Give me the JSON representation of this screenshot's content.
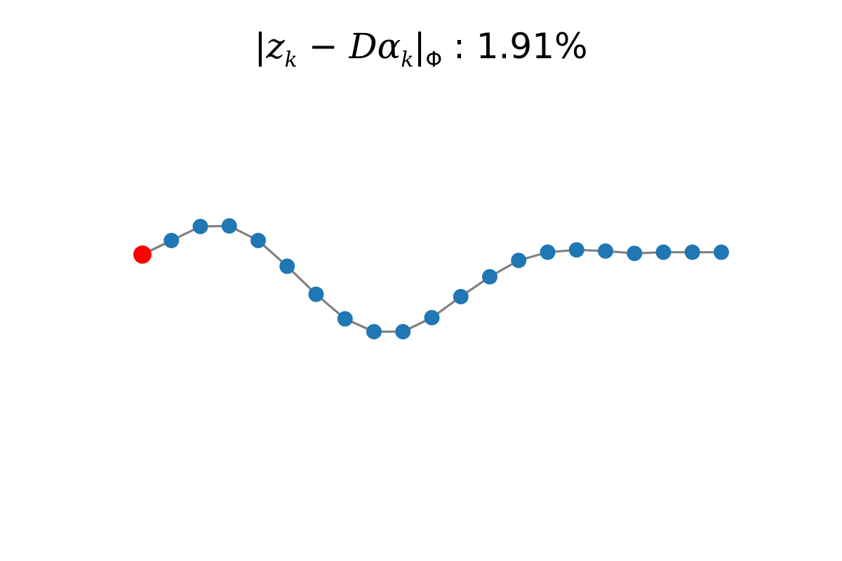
{
  "chart_data": {
    "type": "scatter",
    "title": {
      "bar_left": "|",
      "z": "z",
      "k1": "k",
      "minus": " − ",
      "D": "D",
      "alpha": "α",
      "k2": "k",
      "bar_right": "|",
      "phi": "Φ",
      "colon_value": " : 1.91%"
    },
    "axis_visible": false,
    "grid": false,
    "xlim": [
      0,
      20
    ],
    "ylim": [
      -1.2,
      1.2
    ],
    "series": [
      {
        "type": "line",
        "color": "#808080",
        "x": [
          0,
          1,
          2,
          3,
          4,
          5,
          6,
          7,
          8,
          9,
          10,
          11,
          12,
          13,
          14,
          15,
          16,
          17,
          18,
          19,
          20
        ],
        "y": [
          0.0,
          0.12,
          0.24,
          0.245,
          0.12,
          -0.1,
          -0.34,
          -0.55,
          -0.66,
          -0.66,
          -0.54,
          -0.36,
          -0.19,
          -0.05,
          0.02,
          0.04,
          0.03,
          0.01,
          0.02,
          0.02,
          0.02
        ]
      },
      {
        "type": "scatter",
        "color": "#1f77b4",
        "x": [
          1,
          2,
          3,
          4,
          5,
          6,
          7,
          8,
          9,
          10,
          11,
          12,
          13,
          14,
          15,
          16,
          17,
          18,
          19,
          20
        ],
        "y": [
          0.12,
          0.24,
          0.245,
          0.12,
          -0.1,
          -0.34,
          -0.55,
          -0.66,
          -0.66,
          -0.54,
          -0.36,
          -0.19,
          -0.05,
          0.02,
          0.04,
          0.03,
          0.01,
          0.02,
          0.02,
          0.02
        ]
      },
      {
        "type": "scatter",
        "color": "#ff0000",
        "highlight": true,
        "x": [
          0
        ],
        "y": [
          0.0
        ]
      }
    ]
  }
}
